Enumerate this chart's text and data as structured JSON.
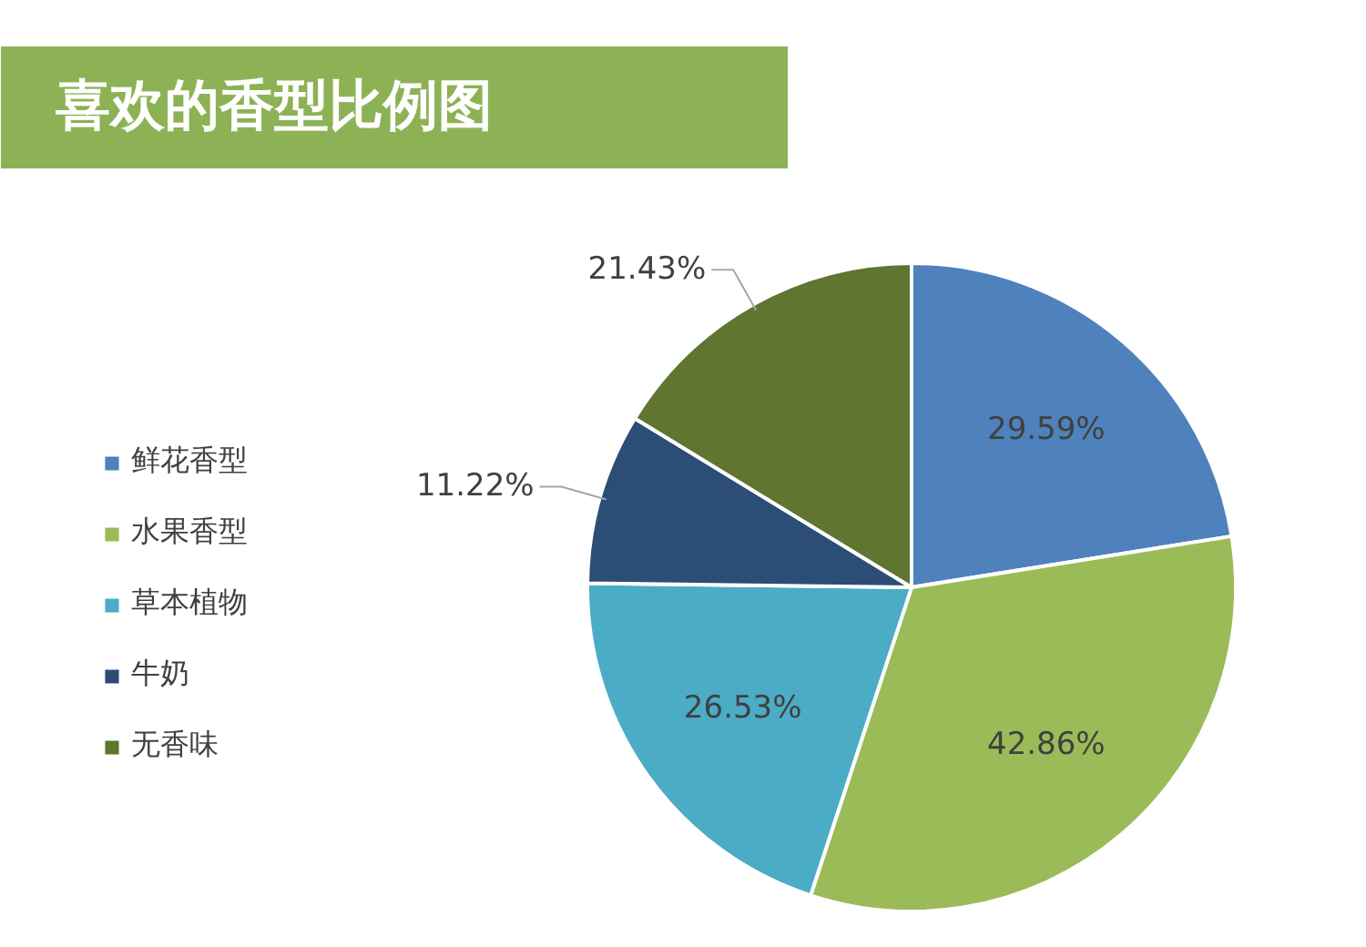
{
  "chart_data": {
    "type": "pie",
    "title": "喜欢的香型比例图",
    "categories": [
      "鲜花香型",
      "水果香型",
      "草本植物",
      "牛奶",
      "无香味"
    ],
    "values": [
      29.59,
      42.86,
      26.53,
      11.22,
      21.43
    ],
    "colors": [
      "#4f81bd",
      "#9bbb59",
      "#4bacc6",
      "#2c4d75",
      "#5f7530"
    ],
    "value_labels": [
      "29.59%",
      "42.86%",
      "26.53%",
      "11.22%",
      "21.43%"
    ],
    "legend": "left"
  }
}
